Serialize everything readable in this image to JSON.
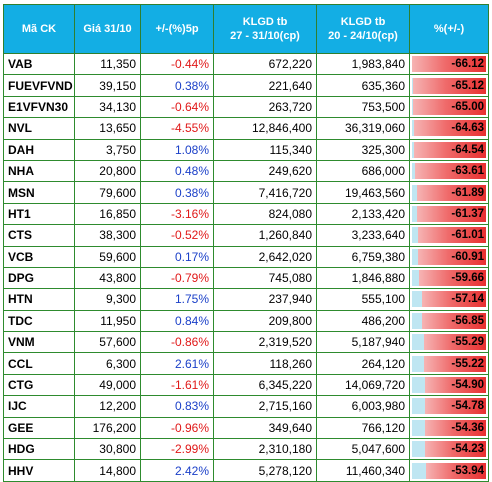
{
  "table": {
    "headers": [
      {
        "lines": [
          "Mã CK"
        ]
      },
      {
        "lines": [
          "Giá 31/10"
        ]
      },
      {
        "lines": [
          "+/-(%)5p"
        ]
      },
      {
        "lines": [
          "KLGD tb",
          "27 - 31/10(cp)"
        ]
      },
      {
        "lines": [
          "KLGD tb",
          "20 - 24/10(cp)"
        ]
      },
      {
        "lines": [
          "%(+/-)"
        ]
      }
    ],
    "rows": [
      {
        "code": "VAB",
        "price": "11,350",
        "chg": "-0.44%",
        "vol1": "672,220",
        "vol2": "1,983,840",
        "pct": "-66.12",
        "pct_value": 66.12
      },
      {
        "code": "FUEVFVND",
        "price": "39,150",
        "chg": "0.38%",
        "vol1": "221,640",
        "vol2": "635,360",
        "pct": "-65.12",
        "pct_value": 65.12
      },
      {
        "code": "E1VFVN30",
        "price": "34,130",
        "chg": "-0.64%",
        "vol1": "263,720",
        "vol2": "753,500",
        "pct": "-65.00",
        "pct_value": 65.0
      },
      {
        "code": "NVL",
        "price": "13,650",
        "chg": "-4.55%",
        "vol1": "12,846,400",
        "vol2": "36,319,060",
        "pct": "-64.63",
        "pct_value": 64.63
      },
      {
        "code": "DAH",
        "price": "3,750",
        "chg": "1.08%",
        "vol1": "115,340",
        "vol2": "325,300",
        "pct": "-64.54",
        "pct_value": 64.54
      },
      {
        "code": "NHA",
        "price": "20,800",
        "chg": "0.48%",
        "vol1": "249,620",
        "vol2": "686,000",
        "pct": "-63.61",
        "pct_value": 63.61
      },
      {
        "code": "MSN",
        "price": "79,600",
        "chg": "0.38%",
        "vol1": "7,416,720",
        "vol2": "19,463,560",
        "pct": "-61.89",
        "pct_value": 61.89
      },
      {
        "code": "HT1",
        "price": "16,850",
        "chg": "-3.16%",
        "vol1": "824,080",
        "vol2": "2,133,420",
        "pct": "-61.37",
        "pct_value": 61.37
      },
      {
        "code": "CTS",
        "price": "38,300",
        "chg": "-0.52%",
        "vol1": "1,260,840",
        "vol2": "3,233,640",
        "pct": "-61.01",
        "pct_value": 61.01
      },
      {
        "code": "VCB",
        "price": "59,600",
        "chg": "0.17%",
        "vol1": "2,642,020",
        "vol2": "6,759,380",
        "pct": "-60.91",
        "pct_value": 60.91
      },
      {
        "code": "DPG",
        "price": "43,800",
        "chg": "-0.79%",
        "vol1": "745,080",
        "vol2": "1,846,880",
        "pct": "-59.66",
        "pct_value": 59.66
      },
      {
        "code": "HTN",
        "price": "9,300",
        "chg": "1.75%",
        "vol1": "237,940",
        "vol2": "555,100",
        "pct": "-57.14",
        "pct_value": 57.14
      },
      {
        "code": "TDC",
        "price": "11,950",
        "chg": "0.84%",
        "vol1": "209,800",
        "vol2": "486,200",
        "pct": "-56.85",
        "pct_value": 56.85
      },
      {
        "code": "VNM",
        "price": "57,600",
        "chg": "-0.86%",
        "vol1": "2,319,520",
        "vol2": "5,187,940",
        "pct": "-55.29",
        "pct_value": 55.29
      },
      {
        "code": "CCL",
        "price": "6,300",
        "chg": "2.61%",
        "vol1": "118,260",
        "vol2": "264,120",
        "pct": "-55.22",
        "pct_value": 55.22
      },
      {
        "code": "CTG",
        "price": "49,000",
        "chg": "-1.61%",
        "vol1": "6,345,220",
        "vol2": "14,069,720",
        "pct": "-54.90",
        "pct_value": 54.9
      },
      {
        "code": "IJC",
        "price": "12,200",
        "chg": "0.83%",
        "vol1": "2,715,160",
        "vol2": "6,003,980",
        "pct": "-54.78",
        "pct_value": 54.78
      },
      {
        "code": "GEE",
        "price": "176,200",
        "chg": "-0.96%",
        "vol1": "349,640",
        "vol2": "766,120",
        "pct": "-54.36",
        "pct_value": 54.36
      },
      {
        "code": "HDG",
        "price": "30,800",
        "chg": "-2.99%",
        "vol1": "2,310,180",
        "vol2": "5,047,600",
        "pct": "-54.23",
        "pct_value": 54.23
      },
      {
        "code": "HHV",
        "price": "14,800",
        "chg": "2.42%",
        "vol1": "5,278,120",
        "vol2": "11,460,340",
        "pct": "-53.94",
        "pct_value": 53.94
      }
    ]
  },
  "colors": {
    "header_bg": "#13aee4",
    "header_text": "#ffffff",
    "negative": "#e01818",
    "positive": "#1a3fc8",
    "bar_fill": "#e83030",
    "bar_track": "#bfe6f2",
    "grid": "#2e8b2e"
  }
}
